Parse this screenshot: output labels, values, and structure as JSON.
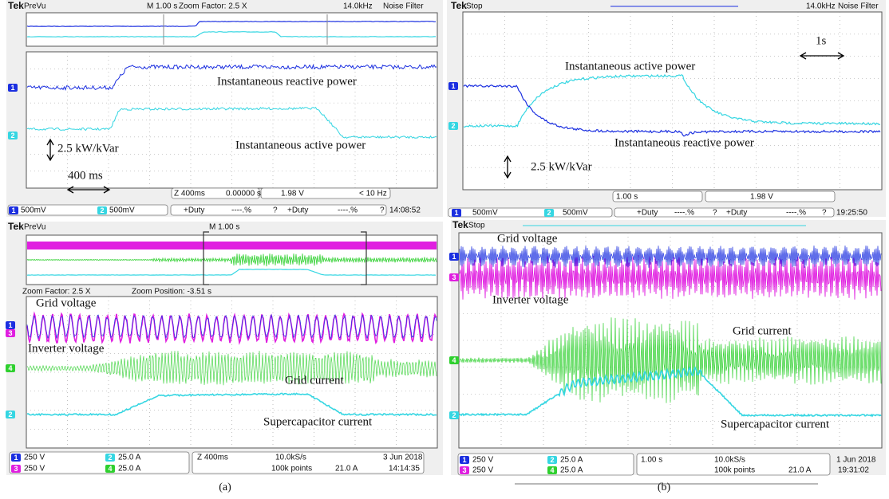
{
  "panels": [
    {
      "brand": "Tek",
      "state": "PreVu",
      "header": [
        "M 1.00 s",
        "Zoom Factor: 2.5 X",
        "14.0kHz",
        "Noise Filter"
      ],
      "labels": [
        "Instantaneous reactive power",
        "Instantaneous active power",
        "2.5 kW/kVar",
        "400 ms"
      ],
      "status": [
        "Z 400ms",
        "0.00000 s",
        "1.98 V",
        "< 10 Hz"
      ],
      "channels": [
        "1",
        "2"
      ],
      "footer": [
        "500mV",
        "500mV",
        "+Duty",
        "----.%",
        "?",
        "+Duty",
        "----.%",
        "?",
        "14:08:52"
      ]
    },
    {
      "brand": "Tek",
      "state": "Stop",
      "header": [
        "14.0kHz",
        "Noise Filter"
      ],
      "labels": [
        "Instantaneous active power",
        "Instantaneous reactive power",
        "1s",
        "2.5 kW/kVar"
      ],
      "status": [
        "1.00 s",
        "1.98 V"
      ],
      "channels": [
        "1",
        "2"
      ],
      "footer": [
        "500mV",
        "500mV",
        "+Duty",
        "----.%",
        "?",
        "+Duty",
        "----.%",
        "?",
        "19:25:50"
      ]
    },
    {
      "brand": "Tek",
      "state": "PreVu",
      "header": [
        "M 1.00 s",
        "Zoom Factor: 2.5 X",
        "Zoom Position: -3.51 s"
      ],
      "labels": [
        "Grid voltage",
        "Inverter voltage",
        "Grid current",
        "Supercapacitor current"
      ],
      "channels": [
        "1",
        "3",
        "2",
        "4"
      ],
      "footer": [
        "250 V",
        "250 V",
        "25.0 A",
        "25.0 A",
        "Z 400ms",
        "10.0kS/s",
        "100k points",
        "21.0 A",
        "3 Jun 2018",
        "14:14:35"
      ]
    },
    {
      "brand": "Tek",
      "state": "Stop",
      "labels": [
        "Grid voltage",
        "Inverter voltage",
        "Grid current",
        "Supercapacitor current"
      ],
      "channels": [
        "1",
        "3",
        "2",
        "4"
      ],
      "footer": [
        "250 V",
        "250 V",
        "25.0 A",
        "25.0 A",
        "1.00 s",
        "10.0kS/s",
        "100k points",
        "21.0 A",
        "1 Jun 2018",
        "19:31:02"
      ]
    }
  ],
  "captions": [
    "(a)",
    "(b)"
  ]
}
